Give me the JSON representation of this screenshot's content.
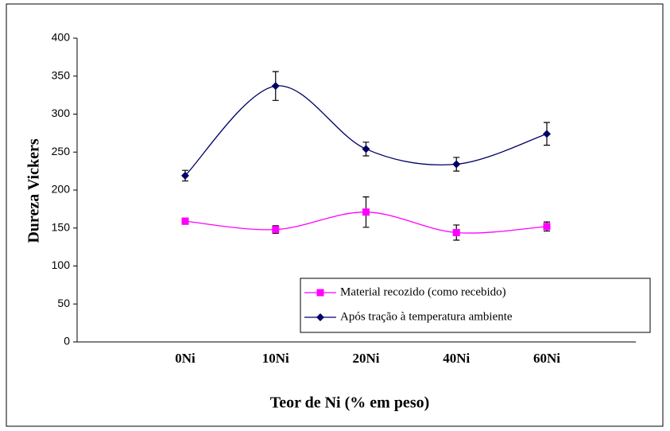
{
  "chart_data": {
    "type": "line",
    "x_label": "Teor de Ni (% em peso)",
    "y_label": "Dureza Vickers",
    "categories": [
      "0Ni",
      "10Ni",
      "20Ni",
      "40Ni",
      "60Ni"
    ],
    "series": [
      {
        "name": "Material recozido (como recebido)",
        "color": "#ff00ff",
        "marker": "square",
        "values": [
          159,
          148,
          171,
          144,
          152
        ],
        "errors": [
          4,
          5,
          20,
          10,
          6
        ]
      },
      {
        "name": "Após tração à temperatura ambiente",
        "color": "#000066",
        "marker": "diamond",
        "values": [
          219,
          337,
          254,
          234,
          274
        ],
        "errors": [
          7,
          19,
          9,
          9,
          15
        ]
      }
    ],
    "ylim": [
      0,
      400
    ],
    "yticks": [
      0,
      50,
      100,
      150,
      200,
      250,
      300,
      350,
      400
    ],
    "smooth": true,
    "legend": "lower-right"
  }
}
